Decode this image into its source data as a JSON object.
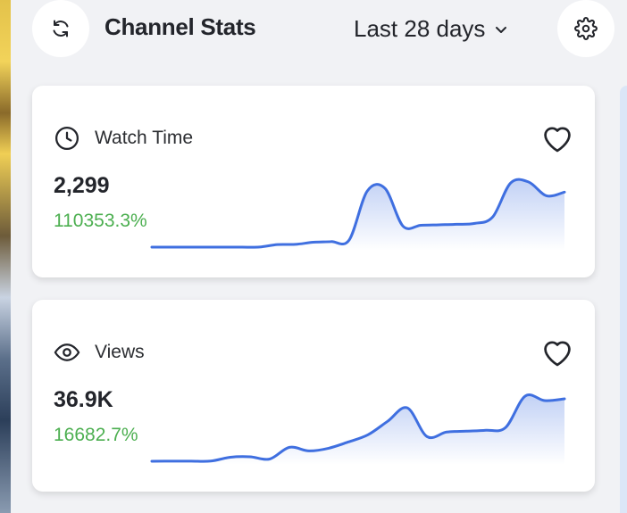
{
  "header": {
    "title": "Channel Stats",
    "range_label": "Last 28 days",
    "refresh_icon": "refresh-icon",
    "settings_icon": "gear-icon",
    "dropdown_icon": "chevron-down-icon"
  },
  "colors": {
    "accent": "#3f6fe0",
    "positive": "#4caf50",
    "card_bg": "#ffffff",
    "page_bg": "#f1f2f5"
  },
  "cards": [
    {
      "label": "Watch Time",
      "icon": "clock-icon",
      "value": "2,299",
      "change": "110353.3%",
      "favorite_icon": "heart-icon",
      "sparkline": [
        0.2,
        0.2,
        0.2,
        0.2,
        0.2,
        0.2,
        0.3,
        3,
        3.2,
        5.5,
        6.2,
        8,
        61,
        64,
        23,
        24,
        24.5,
        25,
        26,
        33,
        70,
        71,
        56,
        60
      ]
    },
    {
      "label": "Views",
      "icon": "eye-icon",
      "value": "36.9K",
      "change": "16682.7%",
      "favorite_icon": "heart-icon",
      "sparkline": [
        0.5,
        0.6,
        0.6,
        0.7,
        5,
        5.5,
        3,
        16,
        12,
        15,
        22,
        30,
        45,
        60,
        28,
        33,
        34,
        35,
        38,
        73,
        68,
        70
      ]
    }
  ]
}
